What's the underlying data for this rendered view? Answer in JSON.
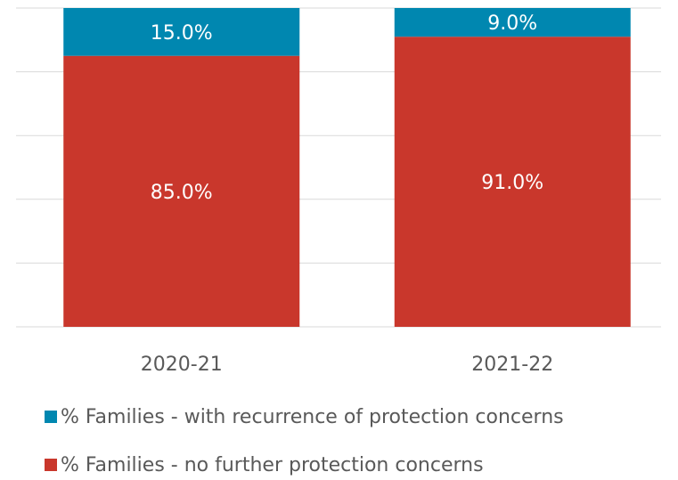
{
  "chart_data": {
    "type": "stacked_bar",
    "categories": [
      "2020-21",
      "2021-22"
    ],
    "series": [
      {
        "name": "% Families - no further protection concerns",
        "color": "#c9372c",
        "values": [
          85,
          91
        ],
        "value_labels": [
          "85.0%",
          "91.0%"
        ]
      },
      {
        "name": "% Families - with recurrence of protection concerns",
        "color": "#0087b0",
        "values": [
          15,
          9
        ],
        "value_labels": [
          "15.0%",
          "9.0%"
        ]
      }
    ],
    "ylim": [
      0,
      100
    ],
    "yticks": [
      0,
      20,
      40,
      60,
      80,
      100
    ],
    "grid": true
  }
}
